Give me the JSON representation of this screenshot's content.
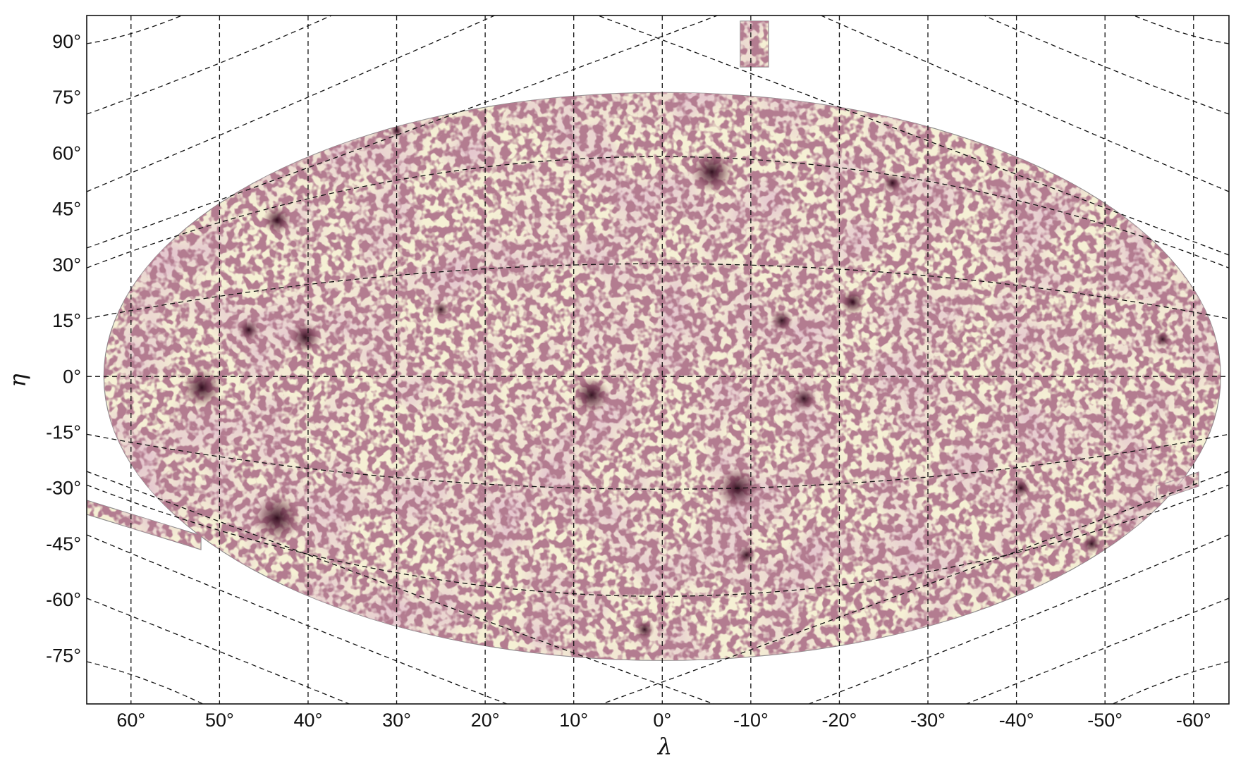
{
  "chart_data": {
    "type": "heatmap",
    "projection": "mollweide",
    "xlabel": "λ",
    "ylabel": "η",
    "xlim": [
      65,
      -64
    ],
    "ylim": [
      -88,
      97
    ],
    "x_ticks": [
      60,
      50,
      40,
      30,
      20,
      10,
      0,
      -10,
      -20,
      -30,
      -40,
      -50,
      -60
    ],
    "x_tick_labels": [
      "60°",
      "50°",
      "40°",
      "30°",
      "20°",
      "10°",
      "0°",
      "-10°",
      "-20°",
      "-30°",
      "-40°",
      "-50°",
      "-60°"
    ],
    "y_ticks": [
      90,
      75,
      60,
      45,
      30,
      15,
      0,
      -15,
      -30,
      -45,
      -60,
      -75
    ],
    "y_tick_labels": [
      "90°",
      "75°",
      "60°",
      "45°",
      "30°",
      "15°",
      "0°",
      "-15°",
      "-30°",
      "-45°",
      "-60°",
      "-75°"
    ],
    "grid": true,
    "colors": {
      "low_density": "#f5f0d4",
      "mid_density": "#c99aa0",
      "high_density": "#3a1020"
    }
  }
}
